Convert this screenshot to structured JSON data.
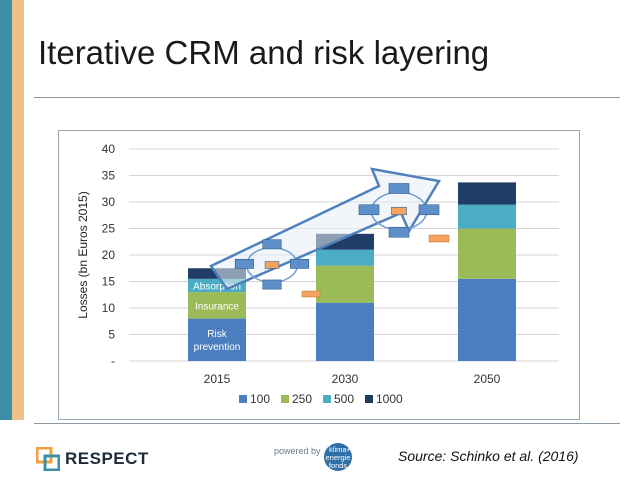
{
  "slide": {
    "title": "Iterative CRM and risk layering",
    "source": "Source: Schinko et al. (2016)",
    "logo_text": "RESPECT",
    "powered": {
      "label": "powered by",
      "word1": "klima+",
      "word2": "energie",
      "word3": "fonds"
    }
  },
  "colors": {
    "stripe_teal": "#3a8fa8",
    "stripe_tan": "#f0c08a",
    "s100": "#4a7ebf",
    "s250": "#9bbb59",
    "s500": "#4bacc6",
    "s1000": "#1f3d66",
    "arrow": "#4f81bd"
  },
  "chart_data": {
    "type": "bar",
    "stacked": true,
    "categories": [
      "2015",
      "2030",
      "2050"
    ],
    "series": [
      {
        "name": "100",
        "values": [
          8,
          11,
          15.5
        ]
      },
      {
        "name": "250",
        "values": [
          5,
          7,
          9.5
        ]
      },
      {
        "name": "500",
        "values": [
          2.5,
          3,
          4.5
        ]
      },
      {
        "name": "1000",
        "values": [
          2,
          3,
          4.2
        ]
      }
    ],
    "title": "",
    "xlabel": "",
    "ylabel": "Losses (bn Euros 2015)",
    "ylim": [
      0,
      40
    ],
    "yticks": [
      "-",
      "5",
      "10",
      "15",
      "20",
      "25",
      "30",
      "35",
      "40"
    ],
    "grid": true,
    "legend": "bottom",
    "annotations": [
      "Risk prevention",
      "Insurance",
      "Absorption"
    ]
  }
}
